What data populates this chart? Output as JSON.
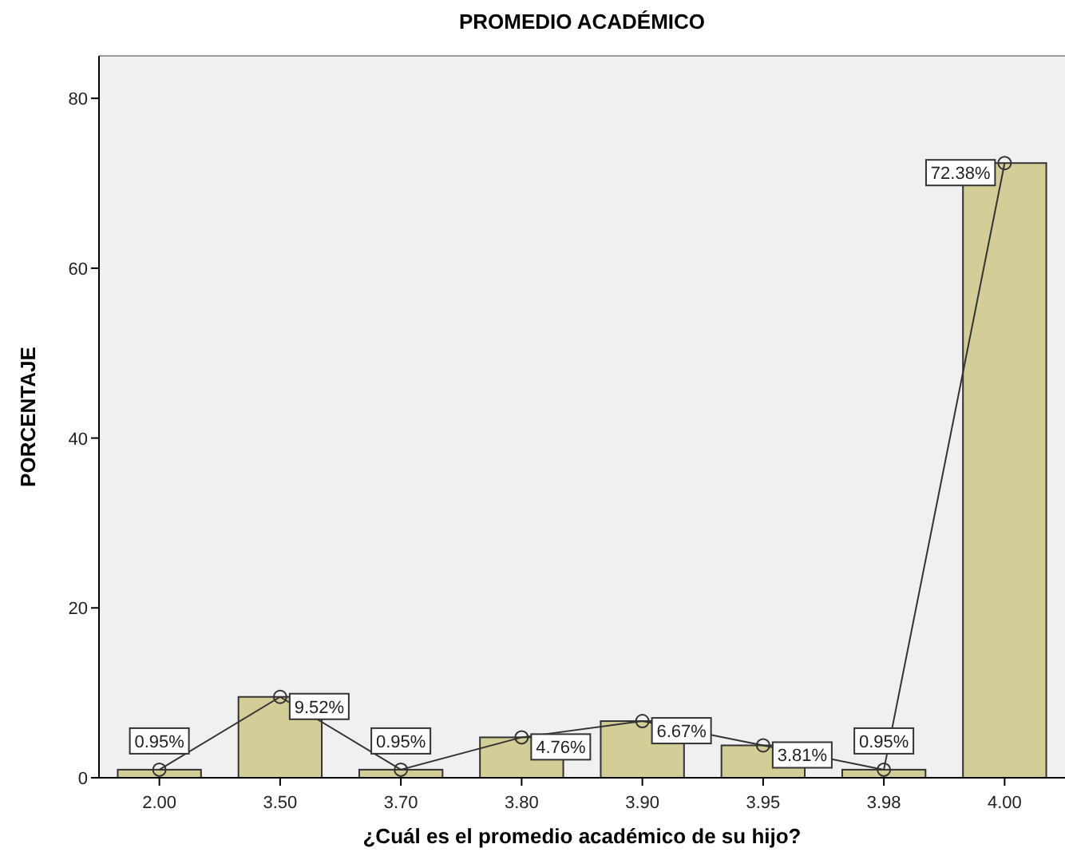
{
  "chart_data": {
    "type": "bar",
    "title": "PROMEDIO ACADÉMICO",
    "xlabel": "¿Cuál es el promedio académico de su hijo?",
    "ylabel": "PORCENTAJE",
    "categories": [
      "2.00",
      "3.50",
      "3.70",
      "3.80",
      "3.90",
      "3.95",
      "3.98",
      "4.00"
    ],
    "series": [
      {
        "color": "#d3ce97",
        "values": [
          0.95,
          9.52,
          0.95,
          4.76,
          6.67,
          3.81,
          0.95,
          72.38
        ]
      },
      {
        "type": "line",
        "color": "#333333",
        "marker": "circle",
        "values": [
          0.95,
          9.52,
          0.95,
          4.76,
          6.67,
          3.81,
          0.95,
          72.38
        ],
        "value_labels": [
          "0.95%",
          "9.52%",
          "0.95%",
          "4.76%",
          "6.67%",
          "3.81%",
          "0.95%",
          "72.38%"
        ]
      }
    ],
    "ylim": [
      0,
      85
    ],
    "yticks": [
      0,
      20,
      40,
      60,
      80
    ],
    "grid": false
  }
}
